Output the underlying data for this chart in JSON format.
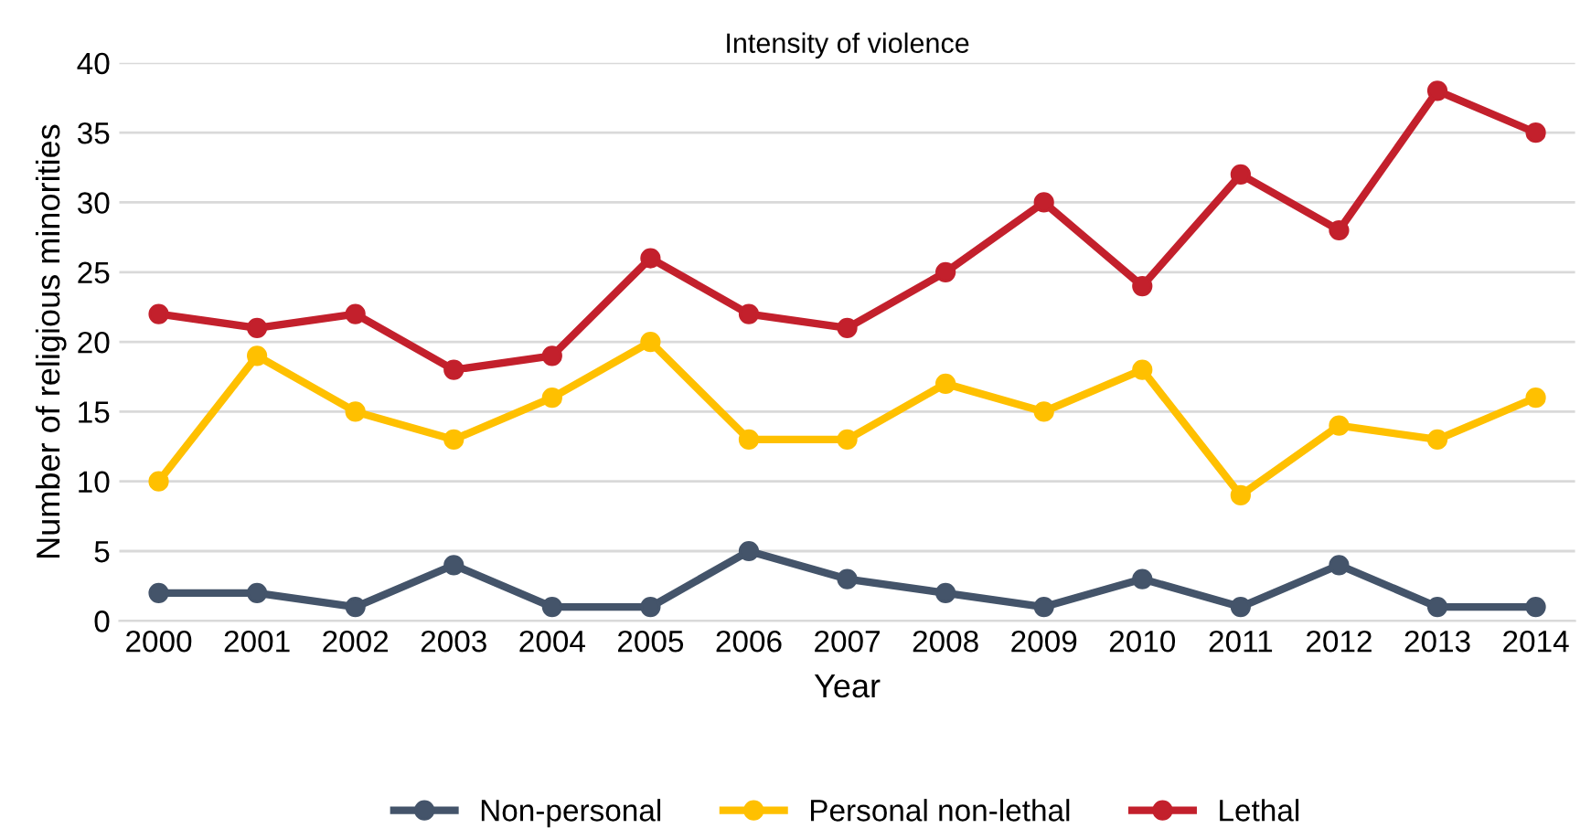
{
  "chart_data": {
    "type": "line",
    "title": "Intensity of violence",
    "xlabel": "Year",
    "ylabel": "Number of religious minorities",
    "categories": [
      "2000",
      "2001",
      "2002",
      "2003",
      "2004",
      "2005",
      "2006",
      "2007",
      "2008",
      "2009",
      "2010",
      "2011",
      "2012",
      "2013",
      "2014"
    ],
    "series": [
      {
        "name": "Non-personal",
        "color": "#44546a",
        "values": [
          2,
          2,
          1,
          4,
          1,
          1,
          5,
          3,
          2,
          1,
          3,
          1,
          4,
          1,
          1
        ]
      },
      {
        "name": "Personal non-lethal",
        "color": "#ffc000",
        "values": [
          10,
          19,
          15,
          13,
          16,
          20,
          13,
          13,
          17,
          15,
          18,
          9,
          14,
          13,
          16
        ]
      },
      {
        "name": "Lethal",
        "color": "#c3202c",
        "values": [
          22,
          21,
          22,
          18,
          19,
          26,
          22,
          21,
          25,
          30,
          24,
          32,
          28,
          38,
          35
        ]
      }
    ],
    "ylim": [
      0,
      40
    ],
    "yticks": [
      0,
      5,
      10,
      15,
      20,
      25,
      30,
      35,
      40
    ],
    "grid": "y",
    "legend": "bottom",
    "marker": "circle",
    "line_style": "solid"
  }
}
